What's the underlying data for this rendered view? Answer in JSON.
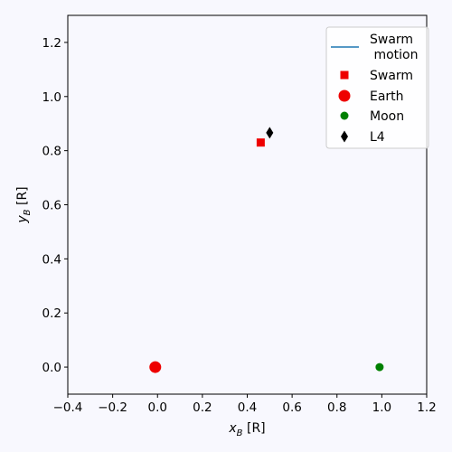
{
  "chart_data": {
    "type": "scatter",
    "title": "",
    "xlabel": "x_B [R]",
    "ylabel": "y_B [R]",
    "xlim": [
      -0.4,
      1.2
    ],
    "ylim": [
      -0.1,
      1.3
    ],
    "xticks": [
      -0.4,
      -0.2,
      0.0,
      0.2,
      0.4,
      0.6,
      0.8,
      1.0,
      1.2
    ],
    "yticks": [
      0.0,
      0.2,
      0.4,
      0.6,
      0.8,
      1.0,
      1.2
    ],
    "xtick_labels": [
      "−0.4",
      "−0.2",
      "0.0",
      "0.2",
      "0.4",
      "0.6",
      "0.8",
      "1.0",
      "1.2"
    ],
    "ytick_labels": [
      "0.0",
      "0.2",
      "0.4",
      "0.6",
      "0.8",
      "1.0",
      "1.2"
    ],
    "grid": false,
    "legend_position": "top-right",
    "series": [
      {
        "name": "Swarm\n motion",
        "kind": "line",
        "color": "#1f77b4",
        "points": []
      },
      {
        "name": "Swarm",
        "kind": "square",
        "color": "#ee0000",
        "points": [
          {
            "x": 0.46,
            "y": 0.83
          }
        ]
      },
      {
        "name": "Earth",
        "kind": "circle-large",
        "color": "#ee0000",
        "points": [
          {
            "x": -0.01,
            "y": 0.0
          }
        ]
      },
      {
        "name": "Moon",
        "kind": "circle",
        "color": "#008000",
        "points": [
          {
            "x": 0.99,
            "y": 0.0
          }
        ]
      },
      {
        "name": "L4",
        "kind": "diamond",
        "color": "#000000",
        "points": [
          {
            "x": 0.5,
            "y": 0.866
          }
        ]
      }
    ]
  }
}
